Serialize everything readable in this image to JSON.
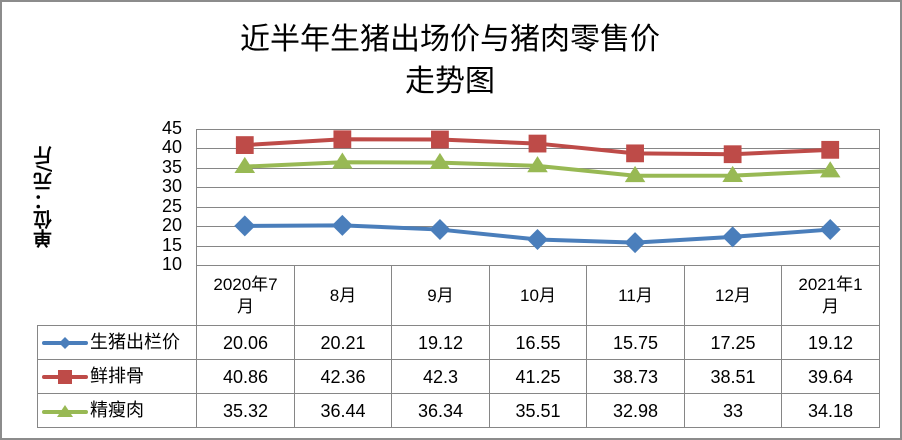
{
  "title": {
    "line1": "近半年生猪出场价与猪肉零售价",
    "line2": "走势图"
  },
  "y_axis": {
    "label": "单位：元/斤",
    "ticks": [
      "45",
      "40",
      "35",
      "30",
      "25",
      "20",
      "15",
      "10"
    ]
  },
  "table": {
    "headers": [
      "2020年7月",
      "8月",
      "9月",
      "10月",
      "11月",
      "12月",
      "2021年1月"
    ],
    "header_lines": [
      [
        "2020年7",
        "月"
      ],
      [
        "8月"
      ],
      [
        "9月"
      ],
      [
        "10月"
      ],
      [
        "11月"
      ],
      [
        "12月"
      ],
      [
        "2021年1",
        "月"
      ]
    ],
    "rows": [
      {
        "label": "生猪出栏价",
        "values": [
          "20.06",
          "20.21",
          "19.12",
          "16.55",
          "15.75",
          "17.25",
          "19.12"
        ]
      },
      {
        "label": "鲜排骨",
        "values": [
          "40.86",
          "42.36",
          "42.3",
          "41.25",
          "38.73",
          "38.51",
          "39.64"
        ]
      },
      {
        "label": "精瘦肉",
        "values": [
          "35.32",
          "36.44",
          "36.34",
          "35.51",
          "32.98",
          "33",
          "34.18"
        ]
      }
    ]
  },
  "colors": {
    "series_blue": "#4a7ebb",
    "series_red": "#be4b48",
    "series_green": "#98b954",
    "grid": "#868686",
    "border": "#8c8c8c"
  },
  "chart_data": {
    "type": "line",
    "title": "近半年生猪出场价与猪肉零售价走势图",
    "xlabel": "",
    "ylabel": "单位：元/斤",
    "categories": [
      "2020年7月",
      "8月",
      "9月",
      "10月",
      "11月",
      "12月",
      "2021年1月"
    ],
    "series": [
      {
        "name": "生猪出栏价",
        "marker": "diamond",
        "color": "#4a7ebb",
        "values": [
          20.06,
          20.21,
          19.12,
          16.55,
          15.75,
          17.25,
          19.12
        ]
      },
      {
        "name": "鲜排骨",
        "marker": "square",
        "color": "#be4b48",
        "values": [
          40.86,
          42.36,
          42.3,
          41.25,
          38.73,
          38.51,
          39.64
        ]
      },
      {
        "name": "精瘦肉",
        "marker": "triangle",
        "color": "#98b954",
        "values": [
          35.32,
          36.44,
          36.34,
          35.51,
          32.98,
          33,
          34.18
        ]
      }
    ],
    "ylim": [
      10,
      45
    ],
    "ytick_step": 5,
    "grid": true,
    "legend_position": "data-table"
  }
}
